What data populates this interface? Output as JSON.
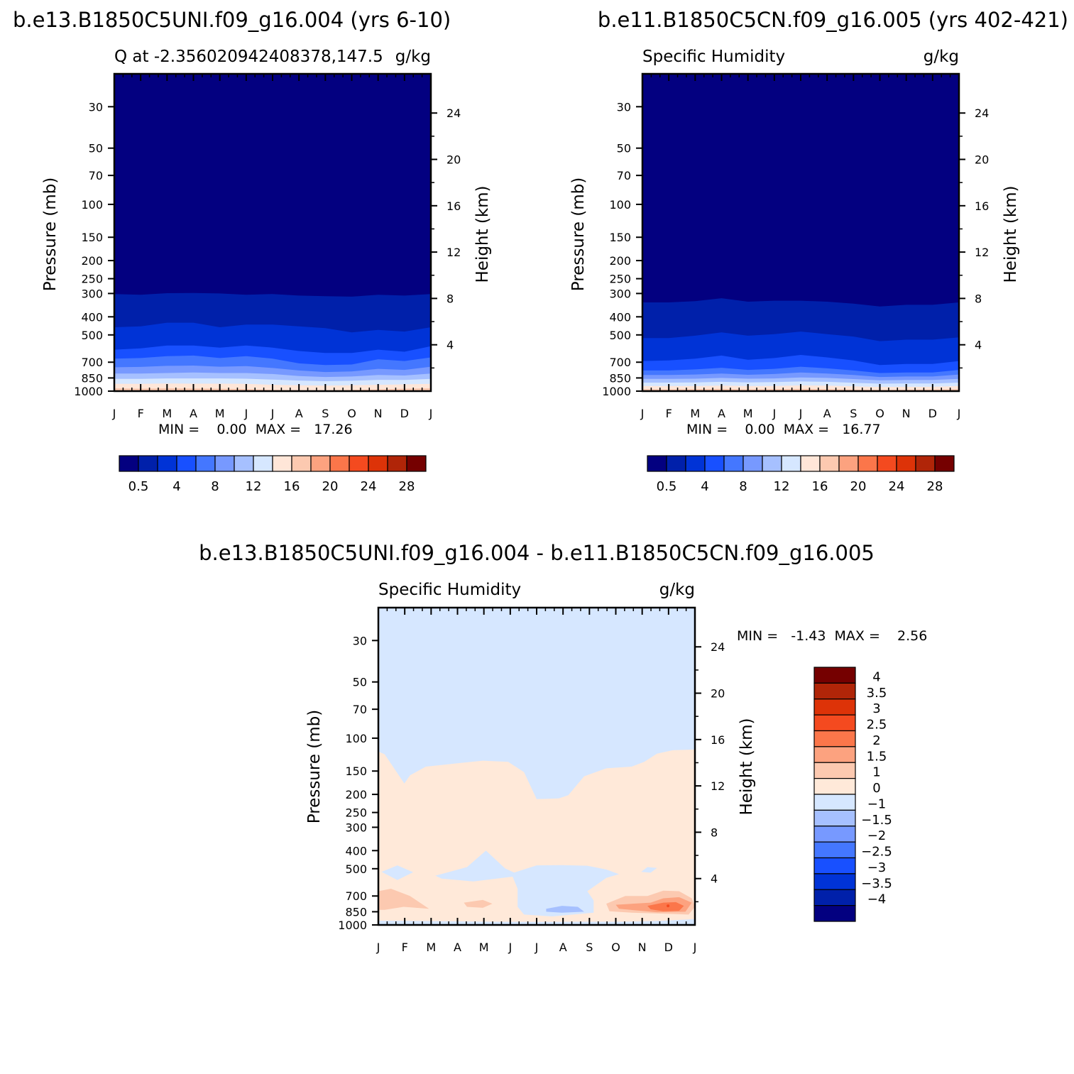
{
  "layout_unit": "px",
  "panels": [
    {
      "id": "case1",
      "heading": "b.e13.B1850C5UNI.f09_g16.004 (yrs 6-10)",
      "left_title": "Q at -2.356020942408378,147.5",
      "right_title": "g/kg",
      "y_label": "Pressure (mb)",
      "y2_label": "Height (km)",
      "min_max": "MIN =    0.00  MAX =   17.26"
    },
    {
      "id": "case2",
      "heading": "b.e11.B1850C5CN.f09_g16.005 (yrs 402-421)",
      "left_title": "Specific Humidity",
      "right_title": "g/kg",
      "y_label": "Pressure (mb)",
      "y2_label": "Height (km)",
      "min_max": "MIN =    0.00  MAX =   16.77"
    },
    {
      "id": "diff",
      "heading": "b.e13.B1850C5UNI.f09_g16.004 - b.e11.B1850C5CN.f09_g16.005",
      "left_title": "Specific Humidity",
      "right_title": "g/kg",
      "y_label": "Pressure (mb)",
      "y2_label": "Height (km)",
      "min_max": "MIN =   -1.43  MAX =    2.56"
    }
  ],
  "chart_data": [
    {
      "type": "heatmap",
      "panel": "case1",
      "x_ticks": [
        "J",
        "F",
        "M",
        "A",
        "M",
        "J",
        "J",
        "A",
        "S",
        "O",
        "N",
        "D",
        "J"
      ],
      "y_ticks": [
        30,
        50,
        70,
        100,
        150,
        200,
        250,
        300,
        400,
        500,
        700,
        850,
        1000
      ],
      "y2_ticks": [
        4,
        8,
        12,
        16,
        20,
        24
      ],
      "levels": [
        0.5,
        2,
        4,
        6,
        8,
        10,
        12,
        14,
        16,
        18,
        20,
        22,
        24,
        26,
        28
      ],
      "colorbar_labels": [
        "0.5",
        "4",
        "8",
        "12",
        "16",
        "20",
        "24",
        "28"
      ],
      "contour_boundaries_mb": {
        "0.5": [
          302,
          305,
          299,
          298,
          300,
          305,
          302,
          308,
          310,
          312,
          305,
          308,
          302,
          302
        ],
        "2": [
          455,
          450,
          430,
          430,
          455,
          440,
          440,
          450,
          460,
          485,
          470,
          480,
          455,
          455
        ],
        "4": [
          600,
          590,
          570,
          570,
          585,
          570,
          585,
          610,
          625,
          625,
          600,
          615,
          575,
          575
        ],
        "6": [
          670,
          665,
          650,
          645,
          665,
          650,
          670,
          710,
          725,
          720,
          675,
          690,
          660,
          660
        ],
        "8": [
          745,
          742,
          732,
          730,
          740,
          735,
          752,
          775,
          790,
          785,
          760,
          770,
          740,
          740
        ],
        "10": [
          805,
          805,
          800,
          795,
          800,
          800,
          810,
          830,
          840,
          835,
          820,
          825,
          805,
          805
        ],
        "12": [
          860,
          860,
          855,
          855,
          855,
          858,
          868,
          878,
          885,
          880,
          870,
          872,
          860,
          860
        ],
        "14": [
          915,
          915,
          910,
          912,
          912,
          915,
          925,
          930,
          935,
          930,
          925,
          920,
          915,
          915
        ],
        "16": [
          965,
          970,
          965,
          968,
          970,
          975,
          985,
          990,
          992,
          985,
          978,
          970,
          965,
          965
        ]
      }
    },
    {
      "type": "heatmap",
      "panel": "case2",
      "x_ticks": [
        "J",
        "F",
        "M",
        "A",
        "M",
        "J",
        "J",
        "A",
        "S",
        "O",
        "N",
        "D",
        "J"
      ],
      "y_ticks": [
        30,
        50,
        70,
        100,
        150,
        200,
        250,
        300,
        400,
        500,
        700,
        850,
        1000
      ],
      "y2_ticks": [
        4,
        8,
        12,
        16,
        20,
        24
      ],
      "levels": [
        0.5,
        2,
        4,
        6,
        8,
        10,
        12,
        14,
        16,
        18,
        20,
        22,
        24,
        26,
        28
      ],
      "colorbar_labels": [
        "0.5",
        "4",
        "8",
        "12",
        "16",
        "20",
        "24",
        "28"
      ],
      "contour_boundaries_mb": {
        "0.5": [
          335,
          335,
          330,
          318,
          332,
          328,
          328,
          332,
          340,
          352,
          345,
          345,
          335,
          335
        ],
        "2": [
          520,
          520,
          505,
          485,
          505,
          495,
          480,
          495,
          510,
          540,
          530,
          530,
          515,
          515
        ],
        "4": [
          690,
          685,
          670,
          645,
          680,
          665,
          640,
          660,
          685,
          725,
          715,
          715,
          690,
          690
        ],
        "6": [
          775,
          775,
          765,
          750,
          770,
          760,
          740,
          755,
          775,
          800,
          795,
          795,
          770,
          770
        ],
        "8": [
          820,
          820,
          815,
          805,
          818,
          810,
          795,
          805,
          820,
          840,
          835,
          835,
          815,
          815
        ],
        "10": [
          860,
          860,
          858,
          850,
          858,
          855,
          845,
          850,
          862,
          875,
          872,
          872,
          860,
          860
        ],
        "12": [
          900,
          900,
          898,
          892,
          898,
          895,
          888,
          892,
          902,
          912,
          910,
          910,
          900,
          900
        ],
        "14": [
          940,
          940,
          940,
          935,
          940,
          938,
          932,
          935,
          942,
          950,
          948,
          948,
          940,
          940
        ],
        "16": [
          975,
          978,
          975,
          972,
          978,
          975,
          972,
          975,
          980,
          985,
          982,
          980,
          975,
          975
        ]
      }
    },
    {
      "type": "heatmap",
      "panel": "diff",
      "x_ticks": [
        "J",
        "F",
        "M",
        "A",
        "M",
        "J",
        "J",
        "A",
        "S",
        "O",
        "N",
        "D",
        "J"
      ],
      "y_ticks": [
        30,
        50,
        70,
        100,
        150,
        200,
        250,
        300,
        400,
        500,
        700,
        850,
        1000
      ],
      "y2_ticks": [
        4,
        8,
        12,
        16,
        20,
        24
      ],
      "levels": [
        -4,
        -3.5,
        -3,
        -2.5,
        -2,
        -1.5,
        -1,
        0,
        1,
        1.5,
        2,
        2.5,
        3,
        3.5,
        4
      ],
      "colorbar_labels": [
        "-4",
        "-3.5",
        "-3",
        "-2.5",
        "-2",
        "-1.5",
        "-1",
        "0",
        "1",
        "1.5",
        "2",
        "2.5",
        "3",
        "3.5",
        "4"
      ]
    }
  ],
  "colors": {
    "seq": [
      "#030080",
      "#0020aa",
      "#0033d6",
      "#1850ff",
      "#4477ff",
      "#7799ff",
      "#a6c0ff",
      "#d6e7ff",
      "#ffe6d8",
      "#fcc9b0",
      "#fca27f",
      "#fb764a",
      "#f44a1f",
      "#dd3308",
      "#b02508",
      "#750000"
    ],
    "diff": [
      "#030080",
      "#0020aa",
      "#0033d6",
      "#1850ff",
      "#4477ff",
      "#7799ff",
      "#a6c0ff",
      "#d6e7ff",
      "#ffe9d9",
      "#fcc9b0",
      "#fca27f",
      "#fb764a",
      "#f44a1f",
      "#dd3308",
      "#b02508",
      "#750000"
    ]
  }
}
